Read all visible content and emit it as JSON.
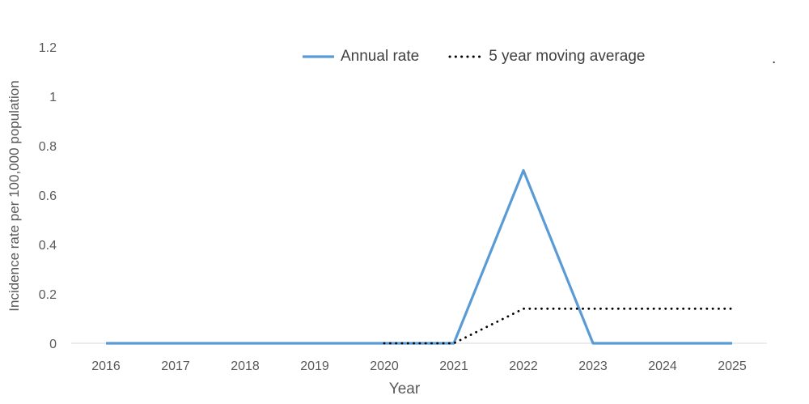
{
  "stray_period": ".",
  "chart_data": {
    "type": "line",
    "title": "",
    "xlabel": "Year",
    "ylabel": "Incidence rate per 100,000 population",
    "x": [
      2016,
      2017,
      2018,
      2019,
      2020,
      2021,
      2022,
      2023,
      2024,
      2025
    ],
    "xtick_labels": [
      "2016",
      "2017",
      "2018",
      "2019",
      "2020",
      "2021",
      "2022",
      "2023",
      "2024",
      "2025"
    ],
    "ylim": [
      0,
      1.2
    ],
    "yticks": [
      0,
      0.2,
      0.4,
      0.6,
      0.8,
      1,
      1.2
    ],
    "ytick_labels": [
      "0",
      "0.2",
      "0.4",
      "0.6",
      "0.8",
      "1",
      "1.2"
    ],
    "grid": false,
    "legend_position": "top",
    "axis_line_color": "#d9d9d9",
    "text_color": "#595959",
    "series": [
      {
        "name": "Annual rate",
        "style": "solid",
        "color": "#5b9bd5",
        "values": [
          0,
          0,
          0,
          0,
          0,
          0,
          0.7,
          0,
          0,
          0
        ]
      },
      {
        "name": "5 year moving average",
        "style": "dotted",
        "color": "#000000",
        "values": [
          null,
          null,
          null,
          null,
          0,
          0,
          0.14,
          0.14,
          0.14,
          0.14
        ]
      }
    ]
  }
}
